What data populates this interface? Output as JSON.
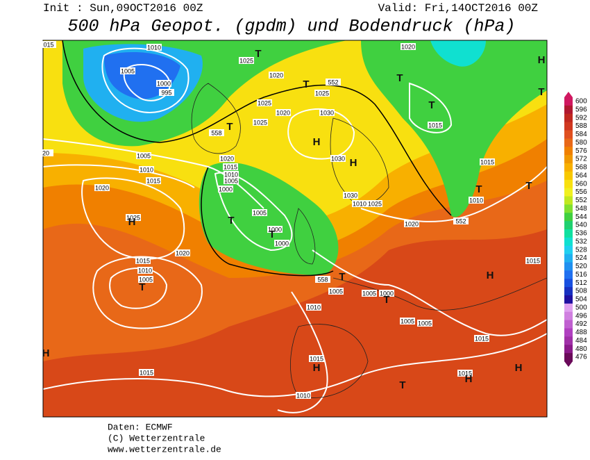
{
  "header": {
    "init": "Init : Sun,09OCT2016 00Z",
    "valid": "Valid: Fri,14OCT2016 00Z",
    "title": "500 hPa Geopot. (gpdm) und Bodendruck (hPa)"
  },
  "map": {
    "labels": [
      "015",
      "20",
      "1010",
      "1005",
      "1000",
      "995",
      "1025",
      "1020",
      "1025",
      "1020",
      "1025",
      "1030",
      "1025",
      "552",
      "1020",
      "1015",
      "1015",
      "1010",
      "552",
      "1020",
      "1020",
      "1015",
      "1010",
      "1005",
      "1000",
      "1005",
      "1000",
      "1000",
      "1030",
      "1030",
      "1010",
      "1025",
      "1005",
      "1010",
      "1015",
      "1020",
      "1025",
      "1020",
      "1015",
      "1010",
      "1005",
      "558",
      "558",
      "1005",
      "1005",
      "1000",
      "1010",
      "1005",
      "1005",
      "1015",
      "1015",
      "1015",
      "1015",
      "1010",
      "1015"
    ],
    "centers": [
      "H",
      "H",
      "T",
      "T",
      "T",
      "T",
      "T",
      "T",
      "H",
      "T",
      "T",
      "H",
      "T",
      "T",
      "T",
      "H",
      "H",
      "T",
      "H",
      "H",
      "H",
      "T",
      "T"
    ]
  },
  "colorbar": {
    "levels": [
      600,
      596,
      592,
      588,
      584,
      580,
      576,
      572,
      568,
      564,
      560,
      556,
      552,
      548,
      544,
      540,
      536,
      532,
      528,
      524,
      520,
      516,
      512,
      508,
      504,
      500,
      496,
      492,
      488,
      484,
      480,
      476
    ],
    "colors": [
      "#d01860",
      "#b01830",
      "#c02820",
      "#d03820",
      "#e05020",
      "#e86818",
      "#f08000",
      "#f09800",
      "#f8b000",
      "#f8c800",
      "#f8e010",
      "#f0f020",
      "#c0e820",
      "#80e030",
      "#40d040",
      "#20d070",
      "#10e0a0",
      "#10e0d0",
      "#20d0f0",
      "#20b0f0",
      "#2090f0",
      "#2070f0",
      "#1850e0",
      "#1830c0",
      "#2010a0",
      "#e0a0f0",
      "#d080e0",
      "#c060d0",
      "#b040c0",
      "#a030a8",
      "#8a1a8a",
      "#6a0a5a"
    ]
  },
  "footer": {
    "source": "Daten: ECMWF",
    "copyright": "(C) Wetterzentrale",
    "url": "www.wetterzentrale.de"
  }
}
